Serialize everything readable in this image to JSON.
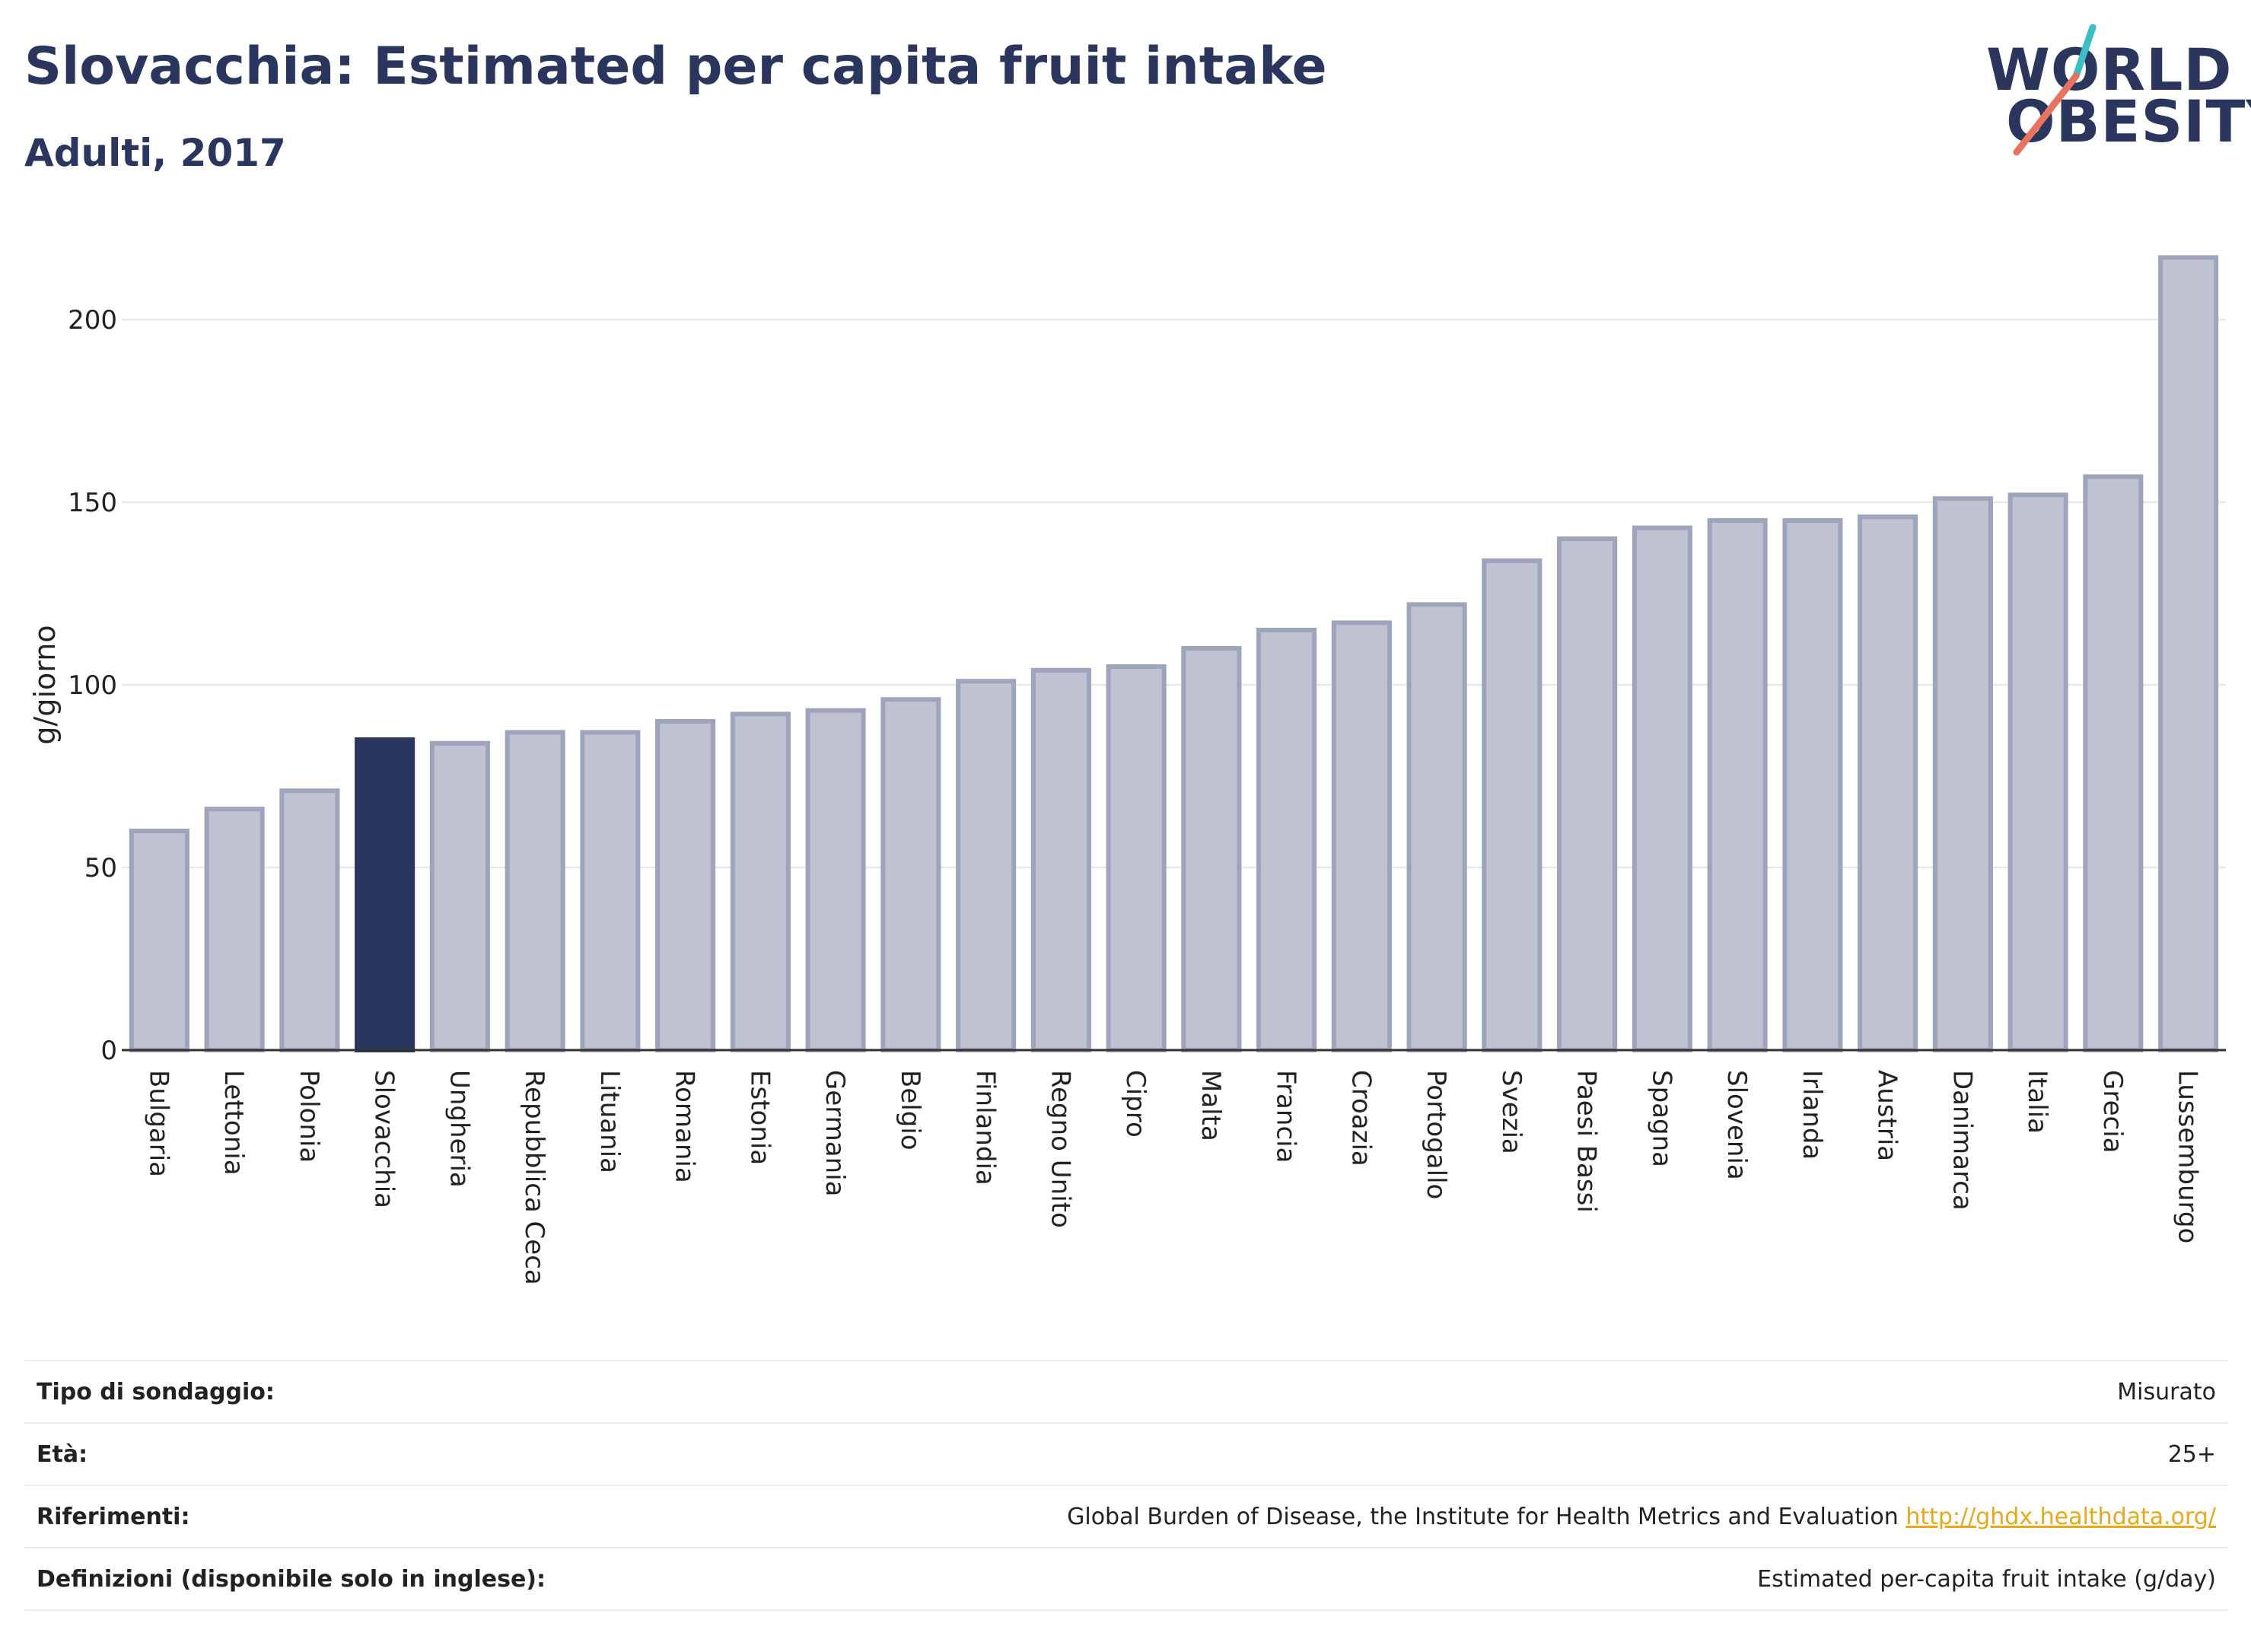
{
  "header": {
    "title": "Slovacchia: Estimated per capita fruit intake",
    "subtitle": "Adulti, 2017"
  },
  "logo": {
    "line1": "WORLD",
    "line2": "OBESITY",
    "colors": {
      "text": "#2b365e",
      "slash_top": "#3bbfc4",
      "slash_bottom": "#e8735e"
    }
  },
  "colors": {
    "bar": "#bfc3d1",
    "bar_border": "#9ea4bb",
    "bar_highlight": "#2b365e",
    "grid": "#e6e6e6",
    "axis": "#333333"
  },
  "chart_data": {
    "type": "bar",
    "categories": [
      "Bulgaria",
      "Lettonia",
      "Polonia",
      "Slovacchia",
      "Ungheria",
      "Repubblica Ceca",
      "Lituania",
      "Romania",
      "Estonia",
      "Germania",
      "Belgio",
      "Finlandia",
      "Regno Unito",
      "Cipro",
      "Malta",
      "Francia",
      "Croazia",
      "Portogallo",
      "Svezia",
      "Paesi Bassi",
      "Spagna",
      "Slovenia",
      "Irlanda",
      "Austria",
      "Danimarca",
      "Italia",
      "Grecia",
      "Lussemburgo"
    ],
    "values": [
      60,
      66,
      71,
      85,
      84,
      87,
      87,
      90,
      92,
      93,
      96,
      101,
      104,
      105,
      110,
      115,
      117,
      122,
      134,
      140,
      143,
      145,
      145,
      146,
      151,
      152,
      157,
      217
    ],
    "highlight": "Slovacchia",
    "ylabel": "g/giorno",
    "yticks": [
      0,
      50,
      100,
      150,
      200
    ],
    "ylim": [
      0,
      225
    ],
    "grid": true
  },
  "info": {
    "rows": [
      {
        "key": "Tipo di sondaggio:",
        "value": "Misurato"
      },
      {
        "key": "Età:",
        "value": "25+"
      },
      {
        "key": "Riferimenti:",
        "value": "Global Burden of Disease, the Institute for Health Metrics and Evaluation",
        "link": "http://ghdx.healthdata.org/"
      },
      {
        "key": "Definizioni (disponibile solo in inglese):",
        "value": "Estimated per-capita fruit intake (g/day)"
      }
    ]
  }
}
